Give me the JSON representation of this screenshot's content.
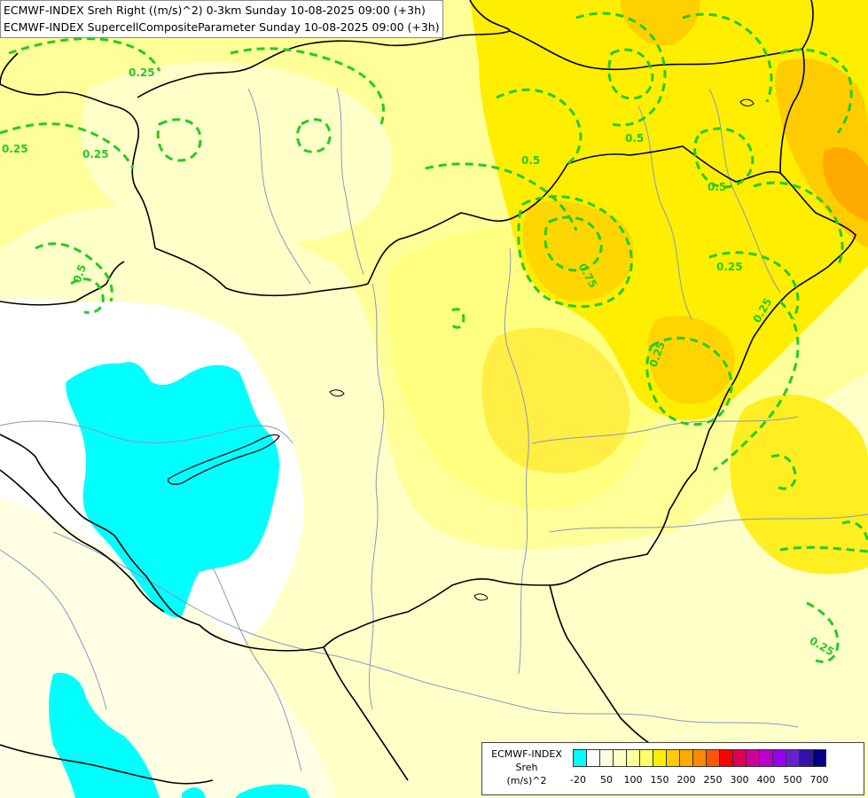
{
  "header": {
    "line1": "ECMWF-INDEX Sreh Right ((m/s)^2) 0-3km Sunday 10-08-2025 09:00 (+3h)",
    "line2": "ECMWF-INDEX SupercellCompositeParameter Sunday 10-08-2025 09:00 (+3h)"
  },
  "legend": {
    "title_line1": "ECMWF-INDEX",
    "title_line2": "Sreh",
    "title_line3": "(m/s)^2",
    "colors": [
      "#00ffff",
      "#ffffff",
      "#fffde0",
      "#ffffc0",
      "#ffff99",
      "#ffff66",
      "#ffee00",
      "#ffcc00",
      "#ffaa00",
      "#ff8800",
      "#ff5500",
      "#ff0000",
      "#dd0055",
      "#cc0099",
      "#bb00cc",
      "#9900ee",
      "#6622cc",
      "#3311aa",
      "#000088"
    ],
    "tick_labels": [
      "-20",
      "50",
      "100",
      "150",
      "200",
      "250",
      "300",
      "400",
      "500",
      "700"
    ]
  },
  "contours": {
    "color": "#22cc22",
    "labels": [
      "0.25",
      "0.25",
      "0.25",
      "0.5",
      "0.5",
      "0.75",
      "0.5",
      "0.25",
      "0.25",
      "0.25",
      "0.25",
      "0.5"
    ]
  },
  "colors": {
    "cyan_low": "#00ffff",
    "pale_yellow": "#ffffc0",
    "light_yellow": "#ffff80",
    "yellow": "#ffee00",
    "orange": "#ffcc00",
    "border": "#000000",
    "river": "#8899bb"
  }
}
